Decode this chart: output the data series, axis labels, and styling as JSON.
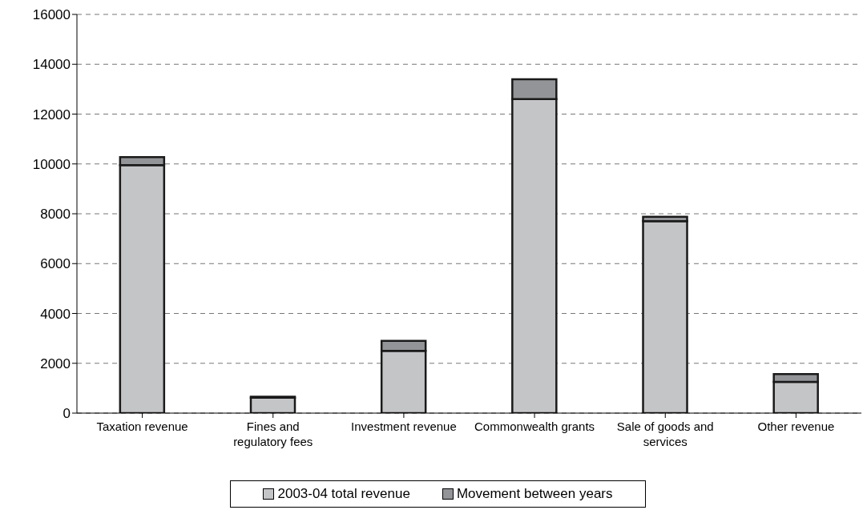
{
  "chart_data": {
    "type": "bar",
    "stacked": true,
    "categories": [
      "Taxation revenue",
      "Fines and regulatory fees",
      "Investment revenue",
      "Commonwealth grants",
      "Sale of goods and services",
      "Other revenue"
    ],
    "series": [
      {
        "name": "2003-04 total revenue",
        "color": "#c4c5c7",
        "values": [
          9950,
          620,
          2500,
          12600,
          7700,
          1250
        ]
      },
      {
        "name": "Movement between years",
        "color": "#939497",
        "values": [
          320,
          40,
          400,
          800,
          180,
          320
        ]
      }
    ],
    "ylim": [
      0,
      16000
    ],
    "yticks": [
      0,
      2000,
      4000,
      6000,
      8000,
      10000,
      12000,
      14000,
      16000
    ],
    "grid": "y",
    "legend": "bottom"
  }
}
